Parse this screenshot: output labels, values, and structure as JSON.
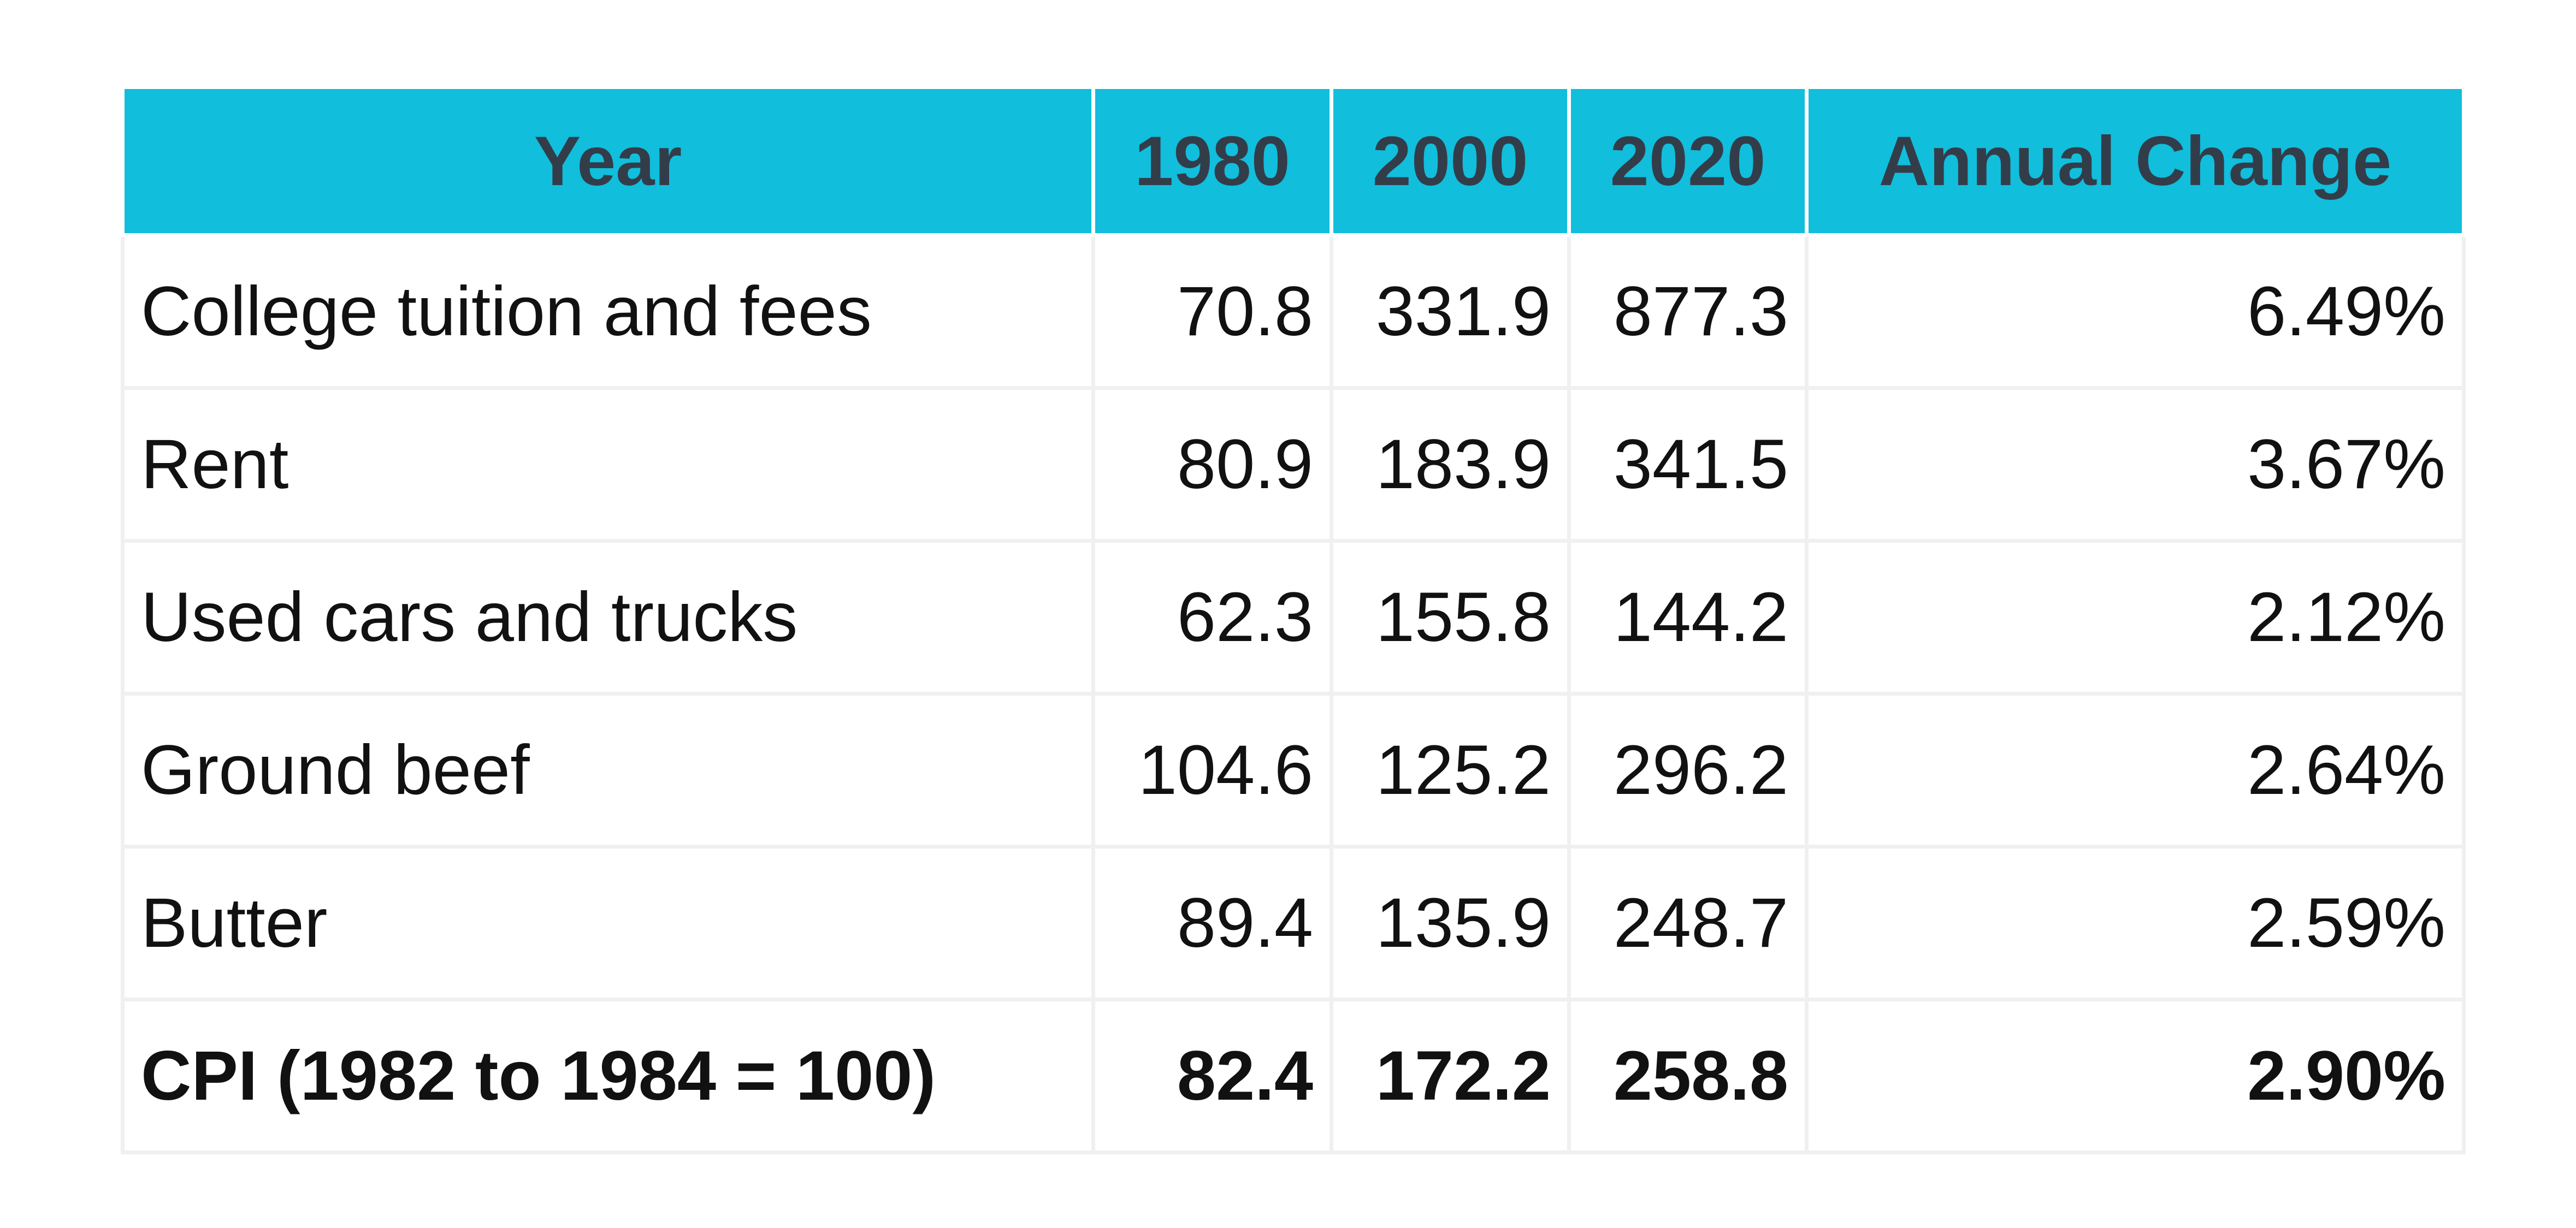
{
  "table": {
    "header": [
      "Year",
      "1980",
      "2000",
      "2020",
      "Annual Change"
    ],
    "rows": [
      [
        "College tuition and fees",
        "70.8",
        "331.9",
        "877.3",
        "6.49%"
      ],
      [
        "Rent",
        "80.9",
        "183.9",
        "341.5",
        "3.67%"
      ],
      [
        "Used cars and trucks",
        "62.3",
        "155.8",
        "144.2",
        "2.12%"
      ],
      [
        "Ground beef",
        "104.6",
        "125.2",
        "296.2",
        "2.64%"
      ],
      [
        "Butter",
        "89.4",
        "135.9",
        "248.7",
        "2.59%"
      ],
      [
        "CPI (1982 to 1984 = 100)",
        "82.4",
        "172.2",
        "258.8",
        "2.90%"
      ]
    ]
  }
}
